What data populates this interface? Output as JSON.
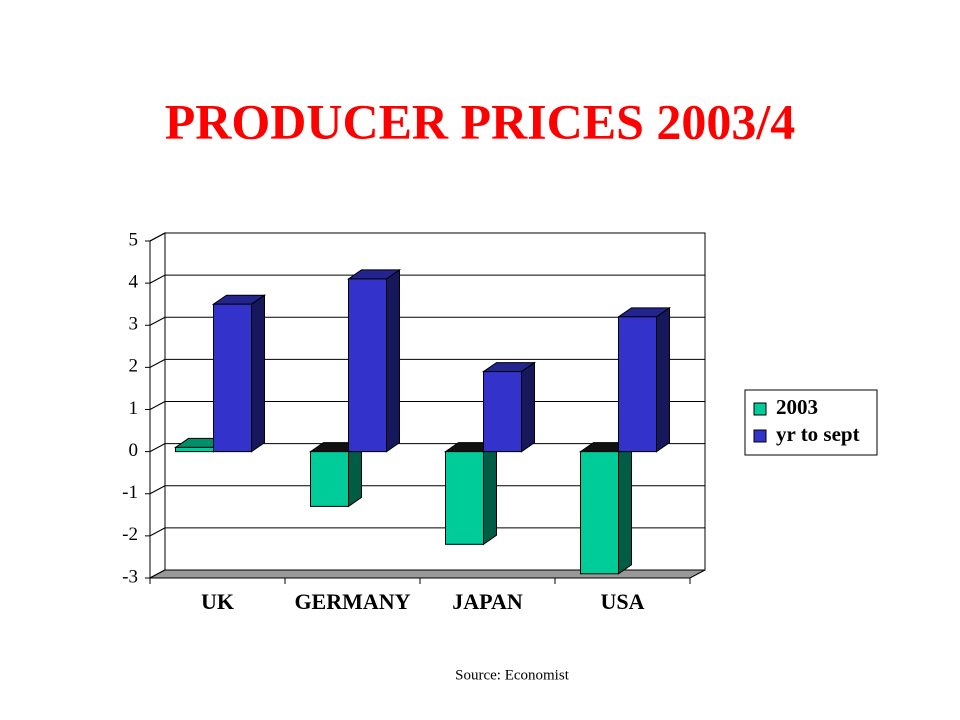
{
  "chart_data": {
    "type": "bar3d",
    "title": "PRODUCER PRICES 2003/4",
    "categories": [
      "UK",
      "GERMANY",
      "JAPAN",
      "USA"
    ],
    "series": [
      {
        "name": "2003",
        "color": "#00cc99",
        "values": [
          0.1,
          -1.3,
          -2.2,
          -2.9
        ]
      },
      {
        "name": "yr to sept",
        "color": "#3333cc",
        "values": [
          3.5,
          4.1,
          1.9,
          3.2
        ]
      }
    ],
    "ylim": [
      -3,
      5
    ],
    "yticks": [
      -3,
      -2,
      -1,
      0,
      1,
      2,
      3,
      4,
      5
    ],
    "grid": true,
    "legend": "right",
    "source": "Source: Economist"
  }
}
